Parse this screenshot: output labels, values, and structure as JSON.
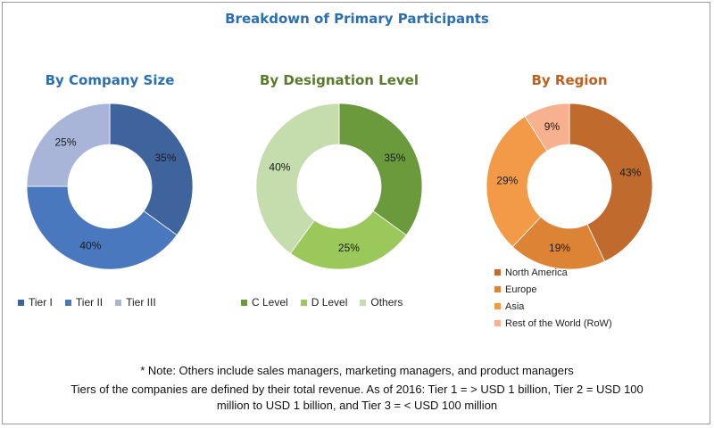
{
  "title": "Breakdown of Primary Participants",
  "chart_data": [
    {
      "type": "pie",
      "title": "By Company Size",
      "categories": [
        "Tier I",
        "Tier II",
        "Tier III"
      ],
      "values": [
        35,
        40,
        25
      ],
      "labels": [
        "35%",
        "40%",
        "25%"
      ],
      "colors": [
        "#3f639c",
        "#4a78bf",
        "#a9b5d8"
      ],
      "title_color": "#2a6fb3",
      "legend": "bottom"
    },
    {
      "type": "pie",
      "title": "By Designation Level",
      "categories": [
        "C Level",
        "D Level",
        "Others"
      ],
      "values": [
        35,
        25,
        40
      ],
      "labels": [
        "35%",
        "25%",
        "40%"
      ],
      "colors": [
        "#6a9a3c",
        "#9bc85a",
        "#c5dcac"
      ],
      "title_color": "#5a7a2c",
      "legend": "bottom"
    },
    {
      "type": "pie",
      "title": "By Region",
      "categories": [
        "North America",
        "Europe",
        "Asia",
        "Rest of the World (RoW)"
      ],
      "values": [
        43,
        19,
        29,
        9
      ],
      "labels": [
        "43%",
        "19%",
        "29%",
        "9%"
      ],
      "colors": [
        "#c06a2e",
        "#dd8335",
        "#f39a49",
        "#f7b18f"
      ],
      "title_color": "#c0601e",
      "legend": "bottom"
    }
  ],
  "notes": {
    "line1": "* Note: Others include sales managers, marketing managers, and product managers",
    "line2": "Tiers of the companies are defined by their total revenue. As of 2016: Tier 1 = > USD 1 billion, Tier 2 = USD 100",
    "line3": "million to USD 1 billion, and Tier 3 = < USD 100 million"
  }
}
